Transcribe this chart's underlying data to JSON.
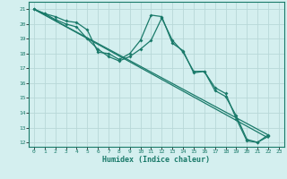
{
  "xlabel": "Humidex (Indice chaleur)",
  "bg_color": "#d4efef",
  "grid_color": "#b8d8d8",
  "line_color": "#1a7a6a",
  "xlim": [
    -0.5,
    23.5
  ],
  "ylim": [
    11.7,
    21.5
  ],
  "yticks": [
    12,
    13,
    14,
    15,
    16,
    17,
    18,
    19,
    20,
    21
  ],
  "xticks": [
    0,
    1,
    2,
    3,
    4,
    5,
    6,
    7,
    8,
    9,
    10,
    11,
    12,
    13,
    14,
    15,
    16,
    17,
    18,
    19,
    20,
    21,
    22,
    23
  ],
  "series1": {
    "x": [
      0,
      1,
      2,
      3,
      4,
      5,
      6,
      7,
      8,
      9,
      10,
      11,
      12,
      13,
      14,
      15,
      16,
      17,
      18,
      19,
      20,
      21,
      22
    ],
    "y": [
      21.0,
      20.7,
      20.5,
      20.2,
      20.1,
      19.6,
      18.1,
      18.0,
      17.6,
      18.0,
      18.9,
      20.6,
      20.5,
      18.7,
      18.2,
      16.7,
      16.8,
      15.7,
      15.3,
      13.6,
      12.1,
      12.0,
      12.5
    ]
  },
  "series2": {
    "x": [
      0,
      1,
      2,
      3,
      4,
      5,
      6,
      7,
      8,
      9,
      10,
      11,
      12,
      13,
      14,
      15,
      16,
      17,
      18,
      19,
      20,
      21,
      22
    ],
    "y": [
      21.0,
      20.7,
      20.3,
      20.0,
      19.8,
      19.0,
      18.3,
      17.8,
      17.5,
      17.8,
      18.3,
      18.9,
      20.4,
      18.9,
      18.1,
      16.8,
      16.8,
      15.5,
      15.1,
      13.8,
      12.2,
      12.0,
      12.4
    ]
  },
  "series3": {
    "x": [
      0,
      22
    ],
    "y": [
      21.0,
      12.3
    ]
  },
  "series4": {
    "x": [
      0,
      22
    ],
    "y": [
      21.0,
      12.5
    ]
  }
}
